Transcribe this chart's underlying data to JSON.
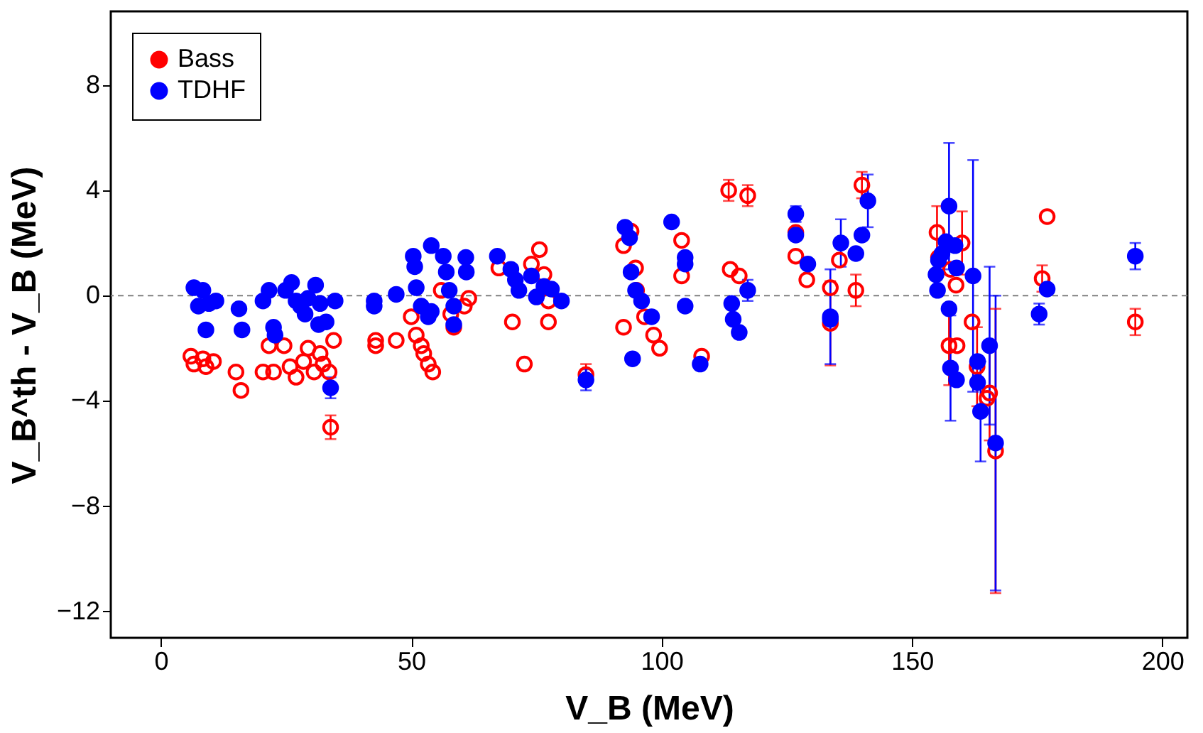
{
  "chart_data": {
    "type": "scatter",
    "xlabel": "V_B (MeV)",
    "ylabel": "V_B^th - V_B (MeV)",
    "xlim": [
      -10,
      205
    ],
    "xticks": [
      0,
      50,
      100,
      150,
      200
    ],
    "ylim": [
      -13,
      10.8
    ],
    "yticks": [
      -12,
      -8,
      -4,
      0,
      4,
      8
    ],
    "grid": false,
    "legend": "top left",
    "marker": "circle",
    "ref_lines": [
      {
        "axis": "y",
        "value": 0,
        "color": "#808080",
        "line_style": "dashed"
      }
    ],
    "series": [
      {
        "name": "Bass",
        "color": "#ff0000",
        "x": [
          6,
          6.6,
          8.4,
          9,
          10.5,
          15,
          16,
          20.4,
          22.5,
          21.6,
          24.6,
          25.8,
          27,
          28.5,
          29.4,
          30.6,
          31.8,
          32.4,
          33.6,
          34.5,
          33.9,
          42.9,
          42.9,
          47,
          50,
          51,
          52,
          52.5,
          53.4,
          54.3,
          56,
          57.9,
          58.5,
          60.6,
          61.5,
          67.5,
          70.2,
          72.6,
          74,
          75.6,
          76.5,
          77.4,
          77.4,
          84.9,
          92.4,
          92.4,
          93.9,
          94.8,
          95,
          96.6,
          98.4,
          99.6,
          104,
          104,
          108,
          113.4,
          117.2,
          113.7,
          115.5,
          126.8,
          126.8,
          129,
          133.7,
          133.7,
          135.5,
          138.8,
          140,
          155,
          155.3,
          157.7,
          157.4,
          159,
          158.8,
          160,
          162,
          163,
          165.5,
          165,
          166.7,
          177,
          176,
          194.6
        ],
        "values": [
          -2.3,
          -2.6,
          -2.4,
          -2.7,
          -2.5,
          -2.9,
          -3.6,
          -2.9,
          -2.9,
          -1.9,
          -1.9,
          -2.7,
          -3.1,
          -2.5,
          -2.0,
          -2.9,
          -2.2,
          -2.6,
          -2.9,
          -1.7,
          -5.0,
          -1.7,
          -1.9,
          -1.7,
          -0.8,
          -1.5,
          -1.9,
          -2.2,
          -2.6,
          -2.9,
          0.2,
          -0.7,
          -1.2,
          -0.4,
          -0.1,
          1.05,
          -1.0,
          -2.6,
          1.2,
          1.75,
          0.8,
          -1.0,
          -0.2,
          -3.0,
          -1.2,
          1.9,
          2.45,
          1.05,
          0.2,
          -0.8,
          -1.5,
          -2.0,
          2.1,
          0.75,
          -2.3,
          4.0,
          3.8,
          1.0,
          0.75,
          2.4,
          1.5,
          0.6,
          -1.05,
          0.3,
          1.35,
          0.2,
          4.2,
          2.4,
          1.45,
          1.0,
          -1.9,
          -1.9,
          0.4,
          2.0,
          -1.0,
          -2.7,
          -3.7,
          -3.9,
          -5.9,
          3.0,
          0.65,
          -1.0
        ],
        "errors": [
          null,
          null,
          null,
          null,
          null,
          null,
          null,
          null,
          null,
          null,
          null,
          null,
          null,
          null,
          null,
          null,
          null,
          null,
          null,
          null,
          0.45,
          null,
          null,
          null,
          null,
          null,
          null,
          null,
          null,
          null,
          null,
          null,
          null,
          null,
          null,
          null,
          null,
          null,
          null,
          null,
          null,
          null,
          null,
          0.4,
          null,
          null,
          null,
          null,
          null,
          null,
          null,
          null,
          null,
          null,
          null,
          0.4,
          0.4,
          null,
          null,
          null,
          null,
          null,
          1.6,
          null,
          null,
          0.6,
          0.5,
          1.0,
          null,
          null,
          1.5,
          null,
          null,
          1.2,
          null,
          1.5,
          1.8,
          null,
          5.4,
          null,
          0.5,
          0.5
        ]
      },
      {
        "name": "TDHF",
        "color": "#0000ff",
        "x": [
          6.6,
          8.4,
          7.5,
          9.6,
          11,
          9,
          15.6,
          16.2,
          20.4,
          21.6,
          22.5,
          22.8,
          24.9,
          26.1,
          27,
          27.9,
          28.8,
          29.4,
          30.9,
          31.8,
          31.5,
          33,
          33.9,
          34.8,
          42.6,
          42.6,
          47,
          50.4,
          50.7,
          54,
          51,
          52,
          53.4,
          54,
          56.4,
          57,
          57.6,
          58.5,
          58.5,
          60.9,
          61,
          67.2,
          69.9,
          70.8,
          71.5,
          74,
          75,
          76.5,
          78,
          80,
          84.9,
          92.7,
          93.6,
          93.9,
          94.8,
          94.2,
          96,
          98,
          102,
          104.7,
          104.7,
          104.7,
          107.7,
          114,
          114.3,
          115.5,
          117.2,
          126.8,
          126.8,
          129.2,
          133.7,
          133.7,
          135.8,
          138.8,
          140,
          141.2,
          154.8,
          155.1,
          155.3,
          156,
          157.4,
          156.8,
          158.6,
          158.9,
          157.4,
          157.7,
          158.9,
          162.2,
          163.1,
          163.1,
          163.7,
          165.5,
          166.7,
          175.4,
          177,
          194.6
        ],
        "values": [
          0.3,
          0.2,
          -0.4,
          -0.3,
          -0.2,
          -1.3,
          -0.5,
          -1.3,
          -0.2,
          0.2,
          -1.2,
          -1.5,
          0.2,
          0.5,
          -0.2,
          -0.4,
          -0.7,
          -0.1,
          0.4,
          -0.3,
          -1.1,
          -1.0,
          -3.5,
          -0.2,
          -0.2,
          -0.4,
          0.05,
          1.5,
          1.1,
          1.9,
          0.3,
          -0.4,
          -0.8,
          -0.6,
          1.5,
          0.9,
          0.2,
          -0.4,
          -1.1,
          1.45,
          0.9,
          1.5,
          1.0,
          0.6,
          0.2,
          0.75,
          -0.05,
          0.35,
          0.25,
          -0.2,
          -3.2,
          2.6,
          2.2,
          0.9,
          0.2,
          -2.4,
          -0.2,
          -0.8,
          2.8,
          1.45,
          1.2,
          -0.4,
          -2.6,
          -0.3,
          -0.9,
          -1.4,
          0.2,
          3.1,
          2.3,
          1.2,
          -0.8,
          -0.9,
          2.0,
          1.6,
          2.3,
          3.6,
          0.8,
          0.2,
          1.35,
          1.6,
          3.4,
          2.05,
          1.9,
          1.05,
          -0.5,
          -2.75,
          -3.2,
          0.75,
          -2.5,
          -3.3,
          -4.4,
          -1.9,
          -5.6,
          -0.7,
          0.25,
          1.5
        ],
        "errors": [
          null,
          null,
          null,
          null,
          null,
          null,
          null,
          null,
          null,
          null,
          null,
          null,
          null,
          null,
          null,
          null,
          null,
          null,
          null,
          null,
          null,
          null,
          0.4,
          null,
          null,
          null,
          null,
          null,
          null,
          null,
          null,
          null,
          null,
          null,
          null,
          null,
          null,
          null,
          null,
          null,
          null,
          null,
          null,
          null,
          null,
          null,
          null,
          null,
          null,
          null,
          0.4,
          null,
          null,
          null,
          null,
          null,
          null,
          null,
          null,
          null,
          null,
          null,
          null,
          null,
          null,
          null,
          0.4,
          0.3,
          null,
          null,
          1.8,
          null,
          0.9,
          null,
          null,
          1.0,
          null,
          null,
          null,
          null,
          2.4,
          null,
          null,
          null,
          null,
          2.0,
          null,
          4.4,
          null,
          null,
          1.9,
          3.0,
          5.6,
          0.4,
          null,
          0.5
        ]
      }
    ]
  }
}
